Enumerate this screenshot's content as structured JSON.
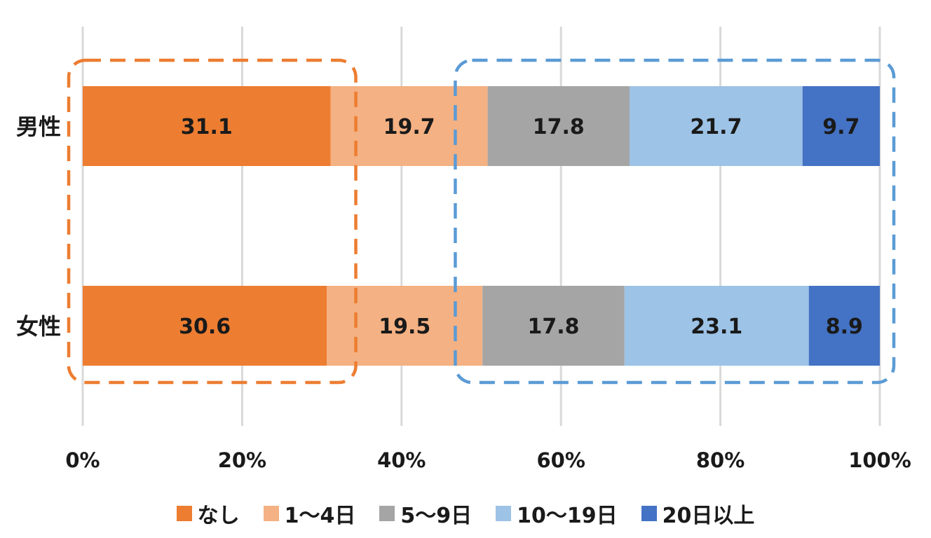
{
  "chart_data": {
    "type": "bar",
    "orientation": "horizontal",
    "stacked": true,
    "percent_stacked": true,
    "categories": [
      "男性",
      "女性"
    ],
    "series": [
      {
        "name": "なし",
        "color": "#ED7D31",
        "values": [
          31.1,
          30.6
        ]
      },
      {
        "name": "1〜4日",
        "color": "#F4B183",
        "values": [
          19.7,
          19.5
        ]
      },
      {
        "name": "5〜9日",
        "color": "#A5A5A5",
        "values": [
          17.8,
          17.8
        ]
      },
      {
        "name": "10〜19日",
        "color": "#9DC3E6",
        "values": [
          21.7,
          23.1
        ]
      },
      {
        "name": "20日以上",
        "color": "#4472C4",
        "values": [
          9.7,
          8.9
        ]
      }
    ],
    "x_ticks": [
      "0%",
      "20%",
      "40%",
      "60%",
      "80%",
      "100%"
    ],
    "xlim": [
      0,
      100
    ],
    "grid": "vertical",
    "legend_position": "bottom",
    "highlight_boxes": [
      {
        "style": "dashed",
        "color": "#ED7D31",
        "x_range": [
          0,
          32.5
        ],
        "covers": [
          "なし"
        ]
      },
      {
        "style": "dashed",
        "color": "#5B9BD5",
        "x_range": [
          48.5,
          100
        ],
        "covers": [
          "5〜9日",
          "10〜19日",
          "20日以上"
        ]
      }
    ]
  }
}
